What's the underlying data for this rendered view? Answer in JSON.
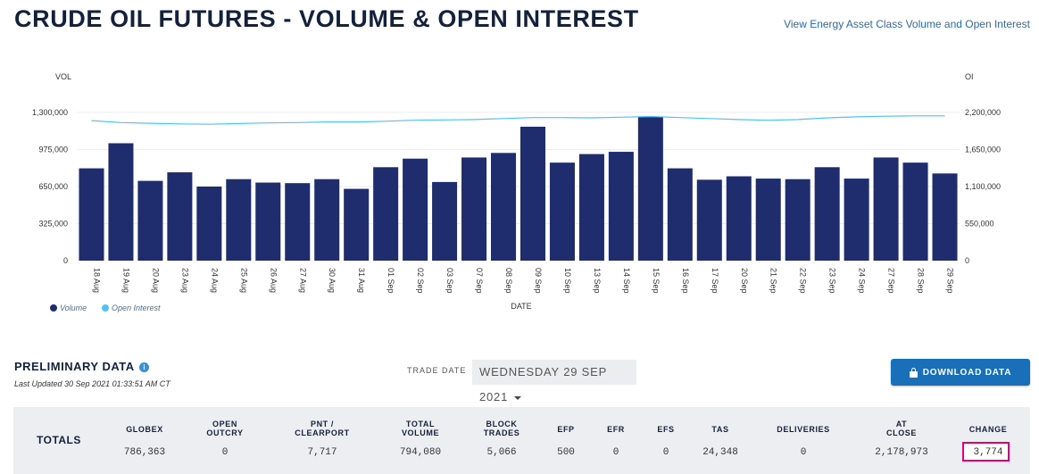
{
  "page": {
    "title": "CRUDE OIL FUTURES - VOLUME & OPEN INTEREST",
    "link": "View Energy Asset Class Volume and Open Interest"
  },
  "chart_data": {
    "type": "bar",
    "categories": [
      "18 Aug",
      "19 Aug",
      "20 Aug",
      "23 Aug",
      "24 Aug",
      "25 Aug",
      "26 Aug",
      "27 Aug",
      "30 Aug",
      "31 Aug",
      "01 Sep",
      "02 Sep",
      "03 Sep",
      "07 Sep",
      "08 Sep",
      "09 Sep",
      "10 Sep",
      "13 Sep",
      "14 Sep",
      "15 Sep",
      "16 Sep",
      "17 Sep",
      "20 Sep",
      "21 Sep",
      "22 Sep",
      "23 Sep",
      "24 Sep",
      "27 Sep",
      "28 Sep",
      "29 Sep"
    ],
    "series": [
      {
        "name": "Volume",
        "type": "bar",
        "axis": "left",
        "color": "#1f2d6e",
        "values": [
          810000,
          1030000,
          700000,
          775000,
          650000,
          715000,
          685000,
          680000,
          715000,
          630000,
          820000,
          895000,
          690000,
          905000,
          945000,
          1175000,
          860000,
          935000,
          955000,
          1260000,
          810000,
          710000,
          740000,
          720000,
          715000,
          820000,
          720000,
          905000,
          860000,
          765000
        ]
      },
      {
        "name": "Open Interest",
        "type": "line",
        "axis": "right",
        "color": "#4fc3f7",
        "values": [
          2080000,
          2050000,
          2040000,
          2030000,
          2025000,
          2035000,
          2045000,
          2050000,
          2060000,
          2060000,
          2070000,
          2085000,
          2090000,
          2095000,
          2110000,
          2125000,
          2125000,
          2120000,
          2130000,
          2140000,
          2125000,
          2110000,
          2095000,
          2085000,
          2095000,
          2120000,
          2135000,
          2145000,
          2150000,
          2150000
        ]
      }
    ],
    "xlabel": "DATE",
    "ylabel_left": "VOL",
    "ylabel_right": "OI",
    "ylim_left": [
      0,
      1300000
    ],
    "ylim_right": [
      0,
      2200000
    ],
    "yticks_left": [
      "0",
      "325,000",
      "650,000",
      "975,000",
      "1,300,000"
    ],
    "yticks_right": [
      "0",
      "550,000",
      "1,100,000",
      "1,650,000",
      "2,200,000"
    ],
    "legend": [
      "Volume",
      "Open Interest"
    ],
    "legend_position": "bottom-left",
    "grid": true
  },
  "prelim": {
    "title": "PRELIMINARY DATA",
    "info_icon": "info-icon",
    "updated": "Last Updated 30 Sep 2021 01:33:51 AM CT",
    "trade_date_label": "TRADE DATE",
    "trade_date_value": "WEDNESDAY 29 SEP 2021",
    "download_label": "DOWNLOAD DATA"
  },
  "totals": {
    "label": "TOTALS",
    "columns": [
      {
        "header": "GLOBEX",
        "value": "786,363"
      },
      {
        "header": "OPEN\nOUTCRY",
        "value": "0"
      },
      {
        "header": "PNT /\nCLEARPORT",
        "value": "7,717"
      },
      {
        "header": "TOTAL\nVOLUME",
        "value": "794,080"
      },
      {
        "header": "BLOCK\nTRADES",
        "value": "5,066"
      },
      {
        "header": "EFP",
        "value": "500"
      },
      {
        "header": "EFR",
        "value": "0"
      },
      {
        "header": "EFS",
        "value": "0"
      },
      {
        "header": "TAS",
        "value": "24,348"
      },
      {
        "header": "DELIVERIES",
        "value": "0"
      },
      {
        "header": "AT\nCLOSE",
        "value": "2,178,973"
      },
      {
        "header": "CHANGE",
        "value": "3,774"
      }
    ],
    "highlight_color": "#e4007c"
  }
}
